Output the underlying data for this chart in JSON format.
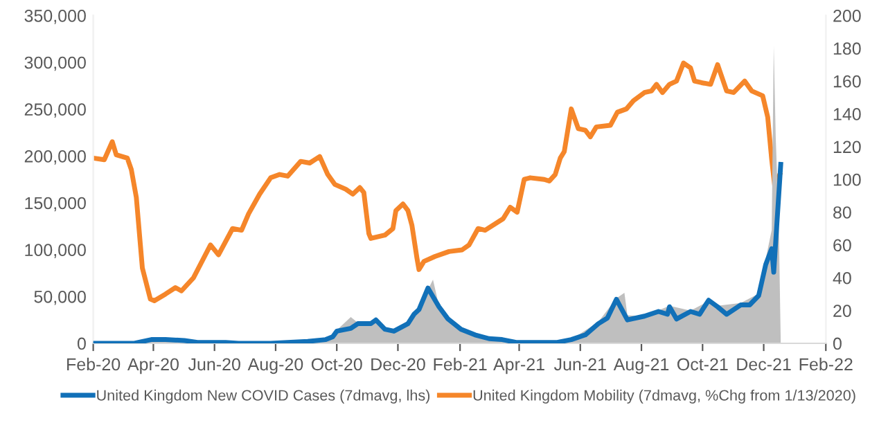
{
  "chart_data": {
    "type": "line",
    "xlim": [
      "2020-02-01",
      "2022-02-01"
    ],
    "xticks": [
      {
        "value": "2020-02-01",
        "label": "Feb-20"
      },
      {
        "value": "2020-04-01",
        "label": "Apr-20"
      },
      {
        "value": "2020-06-01",
        "label": "Jun-20"
      },
      {
        "value": "2020-08-01",
        "label": "Aug-20"
      },
      {
        "value": "2020-10-01",
        "label": "Oct-20"
      },
      {
        "value": "2020-12-01",
        "label": "Dec-20"
      },
      {
        "value": "2021-02-01",
        "label": "Feb-21"
      },
      {
        "value": "2021-04-01",
        "label": "Apr-21"
      },
      {
        "value": "2021-06-01",
        "label": "Jun-21"
      },
      {
        "value": "2021-08-01",
        "label": "Aug-21"
      },
      {
        "value": "2021-10-01",
        "label": "Oct-21"
      },
      {
        "value": "2021-12-01",
        "label": "Dec-21"
      },
      {
        "value": "2022-02-01",
        "label": "Feb-22"
      }
    ],
    "ylim": [
      0,
      350000
    ],
    "yticks": [
      {
        "value": 0,
        "label": "0"
      },
      {
        "value": 50000,
        "label": "50,000"
      },
      {
        "value": 100000,
        "label": "100,000"
      },
      {
        "value": 150000,
        "label": "150,000"
      },
      {
        "value": 200000,
        "label": "200,000"
      },
      {
        "value": 250000,
        "label": "250,000"
      },
      {
        "value": 300000,
        "label": "300,000"
      },
      {
        "value": 350000,
        "label": "350,000"
      }
    ],
    "y2lim": [
      0,
      200
    ],
    "y2ticks": [
      0,
      20,
      40,
      60,
      80,
      100,
      120,
      140,
      160,
      180,
      200
    ],
    "grid": false,
    "legend": "bottom",
    "series": [
      {
        "type": "area",
        "color": "#bfbfbf",
        "x": [
          "2020-02-01",
          "2020-03-13",
          "2020-03-30",
          "2020-04-13",
          "2020-05-02",
          "2020-05-15",
          "2020-06-12",
          "2020-07-27",
          "2020-09-02",
          "2020-09-20",
          "2020-10-01",
          "2020-10-15",
          "2020-10-22",
          "2020-11-04",
          "2020-11-09",
          "2020-11-18",
          "2020-11-27",
          "2020-12-11",
          "2020-12-22",
          "2021-01-05",
          "2021-01-11",
          "2021-01-20",
          "2021-02-02",
          "2021-02-16",
          "2021-03-15",
          "2021-04-21",
          "2021-05-23",
          "2021-06-19",
          "2021-07-07",
          "2021-07-15",
          "2021-07-18",
          "2021-08-04",
          "2021-08-29",
          "2021-09-19",
          "2021-10-07",
          "2021-10-16",
          "2021-11-08",
          "2021-11-26",
          "2021-12-03",
          "2021-12-09",
          "2021-12-11",
          "2021-12-13",
          "2021-12-16",
          "2021-12-18"
        ],
        "values": [
          0,
          0,
          4000,
          5000,
          3000,
          1000,
          1000,
          0,
          2000,
          4500,
          14000,
          28000,
          22000,
          23000,
          27000,
          15000,
          13000,
          22000,
          38000,
          68000,
          40000,
          27000,
          15000,
          9000,
          3500,
          1000,
          4000,
          23000,
          48000,
          54000,
          30000,
          29000,
          40000,
          35000,
          45000,
          40000,
          43000,
          53000,
          90000,
          121000,
          318000,
          220000,
          130000,
          0
        ]
      },
      {
        "name": "United Kingdom New COVID Cases (7dmavg, lhs)",
        "color": "#1170b8",
        "x": [
          "2020-02-01",
          "2020-03-13",
          "2020-03-30",
          "2020-04-13",
          "2020-05-02",
          "2020-05-15",
          "2020-06-12",
          "2020-06-25",
          "2020-07-27",
          "2020-09-02",
          "2020-09-20",
          "2020-09-27",
          "2020-10-01",
          "2020-10-15",
          "2020-10-22",
          "2020-11-04",
          "2020-11-09",
          "2020-11-18",
          "2020-11-27",
          "2020-12-11",
          "2020-12-17",
          "2020-12-22",
          "2020-12-31",
          "2021-01-11",
          "2021-01-20",
          "2021-02-02",
          "2021-02-16",
          "2021-03-02",
          "2021-03-15",
          "2021-03-29",
          "2021-04-21",
          "2021-05-09",
          "2021-05-23",
          "2021-06-06",
          "2021-06-19",
          "2021-06-28",
          "2021-07-07",
          "2021-07-18",
          "2021-08-04",
          "2021-08-18",
          "2021-08-27",
          "2021-08-29",
          "2021-09-05",
          "2021-09-19",
          "2021-09-28",
          "2021-10-07",
          "2021-10-16",
          "2021-10-25",
          "2021-11-08",
          "2021-11-17",
          "2021-11-26",
          "2021-12-03",
          "2021-12-09",
          "2021-12-11",
          "2021-12-18"
        ],
        "values": [
          0,
          0,
          4000,
          4000,
          3000,
          1000,
          1000,
          0,
          0,
          2000,
          4000,
          7000,
          13000,
          16000,
          21000,
          21000,
          25000,
          15000,
          13000,
          21000,
          31000,
          36000,
          59000,
          39000,
          26000,
          15000,
          9000,
          5000,
          4000,
          1000,
          1000,
          1000,
          4000,
          9000,
          21000,
          27000,
          47000,
          25000,
          29000,
          34000,
          31000,
          39000,
          26000,
          34000,
          31000,
          46000,
          39000,
          31000,
          41000,
          41000,
          51000,
          84000,
          101000,
          76000,
          191000
        ]
      },
      {
        "name": "United Kingdom Mobility (7dmavg, %Chg from 1/13/2020)",
        "color": "#f5862a",
        "axis": "y2",
        "x": [
          "2020-02-01",
          "2020-02-12",
          "2020-02-20",
          "2020-02-24",
          "2020-03-06",
          "2020-03-10",
          "2020-03-15",
          "2020-03-21",
          "2020-03-29",
          "2020-04-02",
          "2020-04-13",
          "2020-04-23",
          "2020-04-29",
          "2020-05-11",
          "2020-05-28",
          "2020-06-05",
          "2020-06-19",
          "2020-06-28",
          "2020-07-05",
          "2020-07-16",
          "2020-07-27",
          "2020-08-05",
          "2020-08-13",
          "2020-08-26",
          "2020-09-04",
          "2020-09-14",
          "2020-09-22",
          "2020-09-29",
          "2020-10-10",
          "2020-10-17",
          "2020-10-24",
          "2020-10-28",
          "2020-11-02",
          "2020-11-04",
          "2020-11-18",
          "2020-11-26",
          "2020-11-29",
          "2020-12-06",
          "2020-12-11",
          "2020-12-15",
          "2020-12-20",
          "2020-12-22",
          "2020-12-27",
          "2021-01-07",
          "2021-01-21",
          "2021-02-03",
          "2021-02-10",
          "2021-02-19",
          "2021-02-26",
          "2021-03-16",
          "2021-03-23",
          "2021-03-30",
          "2021-04-06",
          "2021-04-12",
          "2021-04-26",
          "2021-05-01",
          "2021-05-07",
          "2021-05-12",
          "2021-05-16",
          "2021-05-23",
          "2021-05-30",
          "2021-06-06",
          "2021-06-11",
          "2021-06-17",
          "2021-07-01",
          "2021-07-08",
          "2021-07-17",
          "2021-07-24",
          "2021-08-04",
          "2021-08-11",
          "2021-08-16",
          "2021-08-22",
          "2021-08-29",
          "2021-09-05",
          "2021-09-12",
          "2021-09-19",
          "2021-09-23",
          "2021-09-30",
          "2021-10-09",
          "2021-10-16",
          "2021-10-25",
          "2021-11-01",
          "2021-11-12",
          "2021-11-19",
          "2021-11-30",
          "2021-12-05",
          "2021-12-09",
          "2021-12-12",
          "2021-12-17"
        ],
        "values": [
          113,
          112,
          123,
          115,
          113,
          106,
          89,
          46,
          27,
          26,
          30,
          34,
          32,
          40,
          60,
          54,
          70,
          69,
          79,
          91,
          101,
          103,
          102,
          111,
          110,
          114,
          103,
          97,
          94,
          91,
          95,
          92,
          67,
          64,
          66,
          70,
          81,
          85,
          81,
          72,
          52,
          45,
          50,
          53,
          56,
          57,
          60,
          70,
          69,
          76,
          83,
          80,
          100,
          101,
          100,
          99,
          103,
          113,
          117,
          143,
          131,
          130,
          126,
          132,
          133,
          141,
          143,
          148,
          153,
          154,
          158,
          153,
          158,
          160,
          171,
          168,
          160,
          159,
          158,
          170,
          154,
          153,
          160,
          154,
          151,
          138,
          112,
          96,
          103
        ]
      }
    ]
  }
}
